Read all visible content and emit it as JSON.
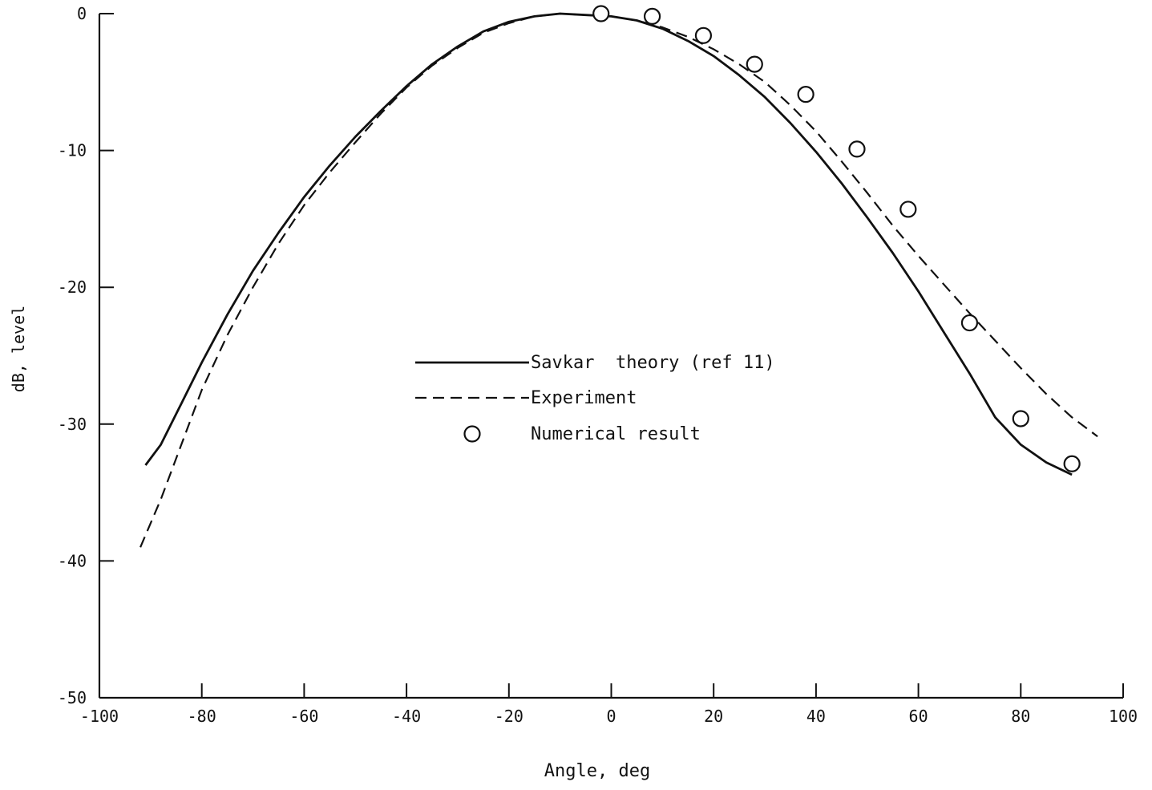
{
  "chart_data": {
    "type": "line",
    "title": "",
    "xlabel": "Angle, deg",
    "ylabel": "dB, level",
    "xlim": [
      -100,
      100
    ],
    "ylim": [
      -50,
      0
    ],
    "xticks": [
      -100,
      -80,
      -60,
      -40,
      -20,
      0,
      20,
      40,
      60,
      80,
      100
    ],
    "yticks": [
      0,
      -10,
      -20,
      -30,
      -40,
      -50
    ],
    "xtick_labels": [
      "-100",
      "-80",
      "-60",
      "-40",
      "-20",
      "0",
      "20",
      "40",
      "60",
      "80",
      "100"
    ],
    "ytick_labels": [
      "0",
      "-10",
      "-20",
      "-30",
      "-40",
      "-50"
    ],
    "grid": false,
    "legend_position": "center",
    "series": [
      {
        "name": "Savkar  theory (ref 11)",
        "style": "solid",
        "x": [
          -91,
          -88,
          -84,
          -80,
          -75,
          -70,
          -65,
          -60,
          -55,
          -50,
          -45,
          -40,
          -35,
          -30,
          -25,
          -20,
          -15,
          -10,
          -5,
          0,
          5,
          10,
          15,
          20,
          25,
          30,
          35,
          40,
          45,
          50,
          55,
          60,
          65,
          70,
          75,
          80,
          85,
          90
        ],
        "y": [
          -33,
          -31.5,
          -28.5,
          -25.5,
          -22,
          -18.8,
          -16,
          -13.4,
          -11.1,
          -9,
          -7.1,
          -5.3,
          -3.7,
          -2.4,
          -1.3,
          -0.6,
          -0.2,
          0,
          -0.1,
          -0.2,
          -0.5,
          -1.1,
          -2,
          -3.1,
          -4.5,
          -6.1,
          -8,
          -10.1,
          -12.4,
          -14.9,
          -17.5,
          -20.3,
          -23.3,
          -26.3,
          -29.5,
          -31.5,
          -32.8,
          -33.7
        ]
      },
      {
        "name": "Experiment",
        "style": "dashed",
        "x": [
          -92,
          -88,
          -84,
          -80,
          -75,
          -70,
          -65,
          -60,
          -55,
          -50,
          -45,
          -40,
          -35,
          -30,
          -25,
          -20,
          -15,
          -10,
          -5,
          0,
          5,
          10,
          15,
          20,
          25,
          30,
          35,
          40,
          45,
          50,
          55,
          60,
          65,
          70,
          75,
          80,
          85,
          90,
          95
        ],
        "y": [
          -39,
          -35.5,
          -31.5,
          -27.5,
          -23.5,
          -20,
          -16.8,
          -14,
          -11.6,
          -9.4,
          -7.3,
          -5.4,
          -3.8,
          -2.5,
          -1.4,
          -0.7,
          -0.2,
          0,
          -0.1,
          -0.2,
          -0.5,
          -1,
          -1.7,
          -2.6,
          -3.7,
          -5,
          -6.7,
          -8.6,
          -10.8,
          -13.1,
          -15.5,
          -17.7,
          -19.8,
          -21.9,
          -23.9,
          -25.9,
          -27.8,
          -29.5,
          -30.9
        ]
      },
      {
        "name": "Numerical result",
        "style": "markers",
        "x": [
          -2,
          8,
          18,
          28,
          38,
          48,
          58,
          70,
          80,
          90
        ],
        "y": [
          0,
          -0.2,
          -1.6,
          -3.7,
          -5.9,
          -9.9,
          -14.3,
          -22.6,
          -29.6,
          -32.9
        ]
      }
    ]
  }
}
